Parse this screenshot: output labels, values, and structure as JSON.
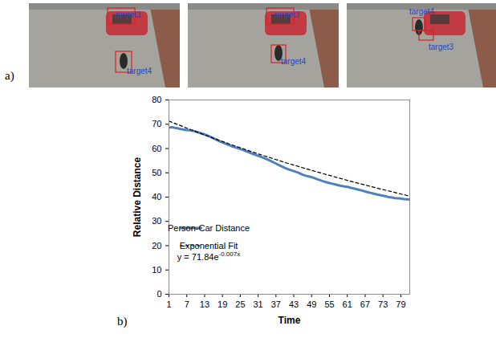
{
  "figure": {
    "panel_a": {
      "letter": "a)",
      "frames": [
        {
          "boxes": [
            "target3",
            "target4"
          ]
        },
        {
          "boxes": [
            "target3",
            "target4"
          ]
        },
        {
          "boxes": [
            "target4",
            "target3"
          ]
        }
      ]
    },
    "panel_b": {
      "letter": "b)"
    }
  },
  "chart_data": {
    "type": "line",
    "xlabel": "Time",
    "ylabel": "Relative Distance",
    "xlim": [
      1,
      82
    ],
    "xticks": [
      1,
      7,
      13,
      19,
      25,
      31,
      37,
      43,
      49,
      55,
      61,
      67,
      73,
      79
    ],
    "ylim": [
      0,
      80
    ],
    "yticks": [
      0,
      10,
      20,
      30,
      40,
      50,
      60,
      70,
      80
    ],
    "grid": false,
    "legend": "lower left",
    "annotations": [
      {
        "text": "y = 71.84e",
        "superscript": "-0.007x"
      }
    ],
    "series": [
      {
        "name": "Person-Car Distance",
        "color": "#4f81bd",
        "line_style": "solid",
        "marker": "none",
        "x": [
          1,
          2,
          3,
          4,
          5,
          6,
          7,
          8,
          9,
          10,
          11,
          12,
          13,
          14,
          15,
          16,
          17,
          18,
          19,
          20,
          21,
          22,
          23,
          24,
          25,
          26,
          27,
          28,
          29,
          30,
          31,
          32,
          33,
          34,
          35,
          36,
          37,
          38,
          39,
          40,
          41,
          42,
          43,
          44,
          45,
          46,
          47,
          48,
          49,
          50,
          51,
          52,
          53,
          54,
          55,
          56,
          57,
          58,
          59,
          60,
          61,
          62,
          63,
          64,
          65,
          66,
          67,
          68,
          69,
          70,
          71,
          72,
          73,
          74,
          75,
          76,
          77,
          78,
          79,
          80,
          81,
          82
        ],
        "values": [
          68.6,
          68.8,
          68.5,
          68.3,
          68.0,
          67.8,
          67.6,
          67.5,
          67.3,
          67.0,
          66.6,
          66.2,
          65.8,
          65.3,
          64.8,
          64.2,
          63.6,
          63.0,
          62.5,
          62.0,
          61.5,
          61.0,
          60.6,
          60.2,
          59.8,
          59.4,
          58.9,
          58.4,
          57.9,
          57.4,
          57.0,
          56.6,
          56.1,
          55.6,
          55.0,
          54.4,
          53.8,
          53.2,
          52.6,
          52.0,
          51.5,
          51.1,
          50.7,
          50.3,
          49.8,
          49.2,
          48.8,
          48.5,
          48.2,
          47.8,
          47.3,
          46.9,
          46.5,
          46.1,
          45.8,
          45.5,
          45.2,
          44.9,
          44.6,
          44.4,
          44.2,
          43.9,
          43.6,
          43.3,
          43.0,
          42.7,
          42.3,
          42.0,
          41.7,
          41.4,
          41.1,
          40.8,
          40.6,
          40.3,
          40.0,
          39.8,
          39.6,
          39.5,
          39.4,
          39.2,
          39.1,
          39.0
        ]
      },
      {
        "name": "Exponential Fit",
        "color": "#000000",
        "line_style": "dashed",
        "marker": "none",
        "x": [
          1,
          11,
          21,
          31,
          41,
          51,
          61,
          71,
          81,
          82
        ],
        "values": [
          71.3,
          66.5,
          62.0,
          57.8,
          53.9,
          50.3,
          46.9,
          43.7,
          40.7,
          40.5
        ]
      }
    ]
  }
}
